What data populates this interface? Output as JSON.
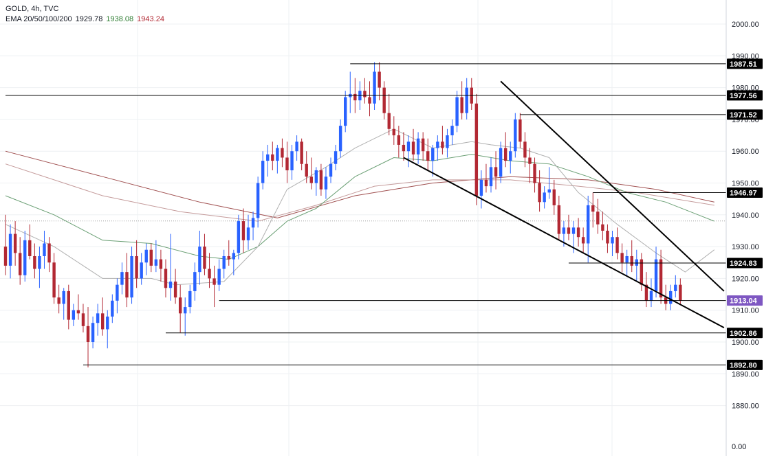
{
  "header": {
    "symbol_line": "GOLD, 4h, TVC",
    "ema_label": "EMA 20/50/100/200",
    "ema_values": [
      "1929.78",
      "1938.08",
      "1943.24"
    ]
  },
  "colors": {
    "up": "#2962ff",
    "down": "#b22833",
    "ema20": "#b0b0b0",
    "ema50": "#6a9f74",
    "ema100": "#c49a9a",
    "ema200": "#a05050",
    "current_tag": "#7e57c2",
    "level_line": "#000000",
    "grid": "#eef0f3",
    "ema_value_1": "#131722",
    "ema_value_2": "#2e7d32",
    "ema_value_3": "#b22833"
  },
  "chart_data": {
    "type": "candlestick",
    "title": "GOLD, 4h, TVC",
    "y_ticks": [
      "1880.00",
      "1890.00",
      "1900.00",
      "1910.00",
      "1920.00",
      "1930.00",
      "1940.00",
      "1950.00",
      "1960.00",
      "1970.00",
      "1980.00",
      "1990.00",
      "2000.00"
    ],
    "bottom_tick": "0.00",
    "ylim": [
      1873,
      2007
    ],
    "current_price": "1913.04",
    "levels": [
      {
        "label": "1987.51",
        "price": 1987.51,
        "from_bar": 71
      },
      {
        "label": "1977.56",
        "price": 1977.56,
        "from_bar": 0
      },
      {
        "label": "1971.52",
        "price": 1971.52,
        "from_bar": 106
      },
      {
        "label": "1946.97",
        "price": 1946.97,
        "from_bar": 121
      },
      {
        "label": "1924.83",
        "price": 1924.83,
        "from_bar": 116
      },
      {
        "label": "1902.86",
        "price": 1902.86,
        "from_bar": 33
      },
      {
        "label": "1892.80",
        "price": 1892.8,
        "from_bar": 16
      }
    ],
    "trendlines": [
      {
        "from": [
          102,
          1982.0
        ],
        "to": [
          148,
          1916.0
        ]
      },
      {
        "from": [
          82,
          1958.0
        ],
        "to": [
          148,
          1904.5
        ]
      }
    ],
    "candles_ohlc": [
      [
        1930,
        1940,
        1921,
        1924
      ],
      [
        1924,
        1937,
        1920,
        1934
      ],
      [
        1934,
        1938,
        1924,
        1928
      ],
      [
        1928,
        1933,
        1918,
        1921
      ],
      [
        1921,
        1935,
        1919,
        1932
      ],
      [
        1932,
        1937,
        1926,
        1927
      ],
      [
        1927,
        1931,
        1920,
        1923
      ],
      [
        1923,
        1930,
        1917,
        1927
      ],
      [
        1927,
        1935,
        1923,
        1931
      ],
      [
        1931,
        1933,
        1922,
        1925
      ],
      [
        1925,
        1928,
        1912,
        1914
      ],
      [
        1914,
        1918,
        1909,
        1912
      ],
      [
        1912,
        1917,
        1907,
        1916
      ],
      [
        1916,
        1918,
        1904,
        1907
      ],
      [
        1907,
        1912,
        1905,
        1910
      ],
      [
        1910,
        1915,
        1907,
        1909
      ],
      [
        1909,
        1912,
        1903,
        1905
      ],
      [
        1905,
        1911,
        1892,
        1900
      ],
      [
        1900,
        1908,
        1898,
        1906
      ],
      [
        1906,
        1912,
        1902,
        1909
      ],
      [
        1909,
        1914,
        1902,
        1904
      ],
      [
        1904,
        1910,
        1898,
        1908
      ],
      [
        1908,
        1915,
        1906,
        1913
      ],
      [
        1913,
        1920,
        1909,
        1918
      ],
      [
        1918,
        1925,
        1915,
        1922
      ],
      [
        1922,
        1928,
        1911,
        1914
      ],
      [
        1914,
        1930,
        1912,
        1927
      ],
      [
        1927,
        1932,
        1917,
        1920
      ],
      [
        1920,
        1928,
        1918,
        1925
      ],
      [
        1925,
        1931,
        1921,
        1929
      ],
      [
        1929,
        1931,
        1922,
        1924
      ],
      [
        1924,
        1932,
        1922,
        1926
      ],
      [
        1926,
        1929,
        1919,
        1923
      ],
      [
        1923,
        1926,
        1914,
        1917
      ],
      [
        1917,
        1934,
        1913,
        1919
      ],
      [
        1919,
        1923,
        1912,
        1914
      ],
      [
        1914,
        1918,
        1903,
        1909
      ],
      [
        1909,
        1914,
        1902,
        1911
      ],
      [
        1911,
        1918,
        1909,
        1916
      ],
      [
        1916,
        1925,
        1913,
        1922
      ],
      [
        1922,
        1935,
        1918,
        1930
      ],
      [
        1930,
        1934,
        1921,
        1923
      ],
      [
        1923,
        1928,
        1917,
        1920
      ],
      [
        1920,
        1924,
        1911,
        1918
      ],
      [
        1918,
        1926,
        1916,
        1923
      ],
      [
        1923,
        1929,
        1920,
        1927
      ],
      [
        1927,
        1932,
        1924,
        1926
      ],
      [
        1926,
        1929,
        1921,
        1928
      ],
      [
        1928,
        1940,
        1926,
        1938
      ],
      [
        1938,
        1942,
        1928,
        1932
      ],
      [
        1932,
        1940,
        1929,
        1936
      ],
      [
        1936,
        1941,
        1932,
        1939
      ],
      [
        1939,
        1952,
        1936,
        1950
      ],
      [
        1950,
        1960,
        1948,
        1957
      ],
      [
        1957,
        1962,
        1952,
        1959
      ],
      [
        1959,
        1963,
        1954,
        1957
      ],
      [
        1957,
        1962,
        1953,
        1961
      ],
      [
        1961,
        1964,
        1955,
        1958
      ],
      [
        1958,
        1963,
        1950,
        1954
      ],
      [
        1954,
        1962,
        1951,
        1960
      ],
      [
        1960,
        1965,
        1957,
        1963
      ],
      [
        1963,
        1964,
        1954,
        1956
      ],
      [
        1956,
        1960,
        1950,
        1952
      ],
      [
        1952,
        1958,
        1948,
        1950
      ],
      [
        1950,
        1955,
        1946,
        1954
      ],
      [
        1954,
        1956,
        1946,
        1948
      ],
      [
        1948,
        1955,
        1945,
        1952
      ],
      [
        1952,
        1958,
        1950,
        1956
      ],
      [
        1956,
        1962,
        1954,
        1960
      ],
      [
        1960,
        1970,
        1958,
        1968
      ],
      [
        1968,
        1979,
        1966,
        1977
      ],
      [
        1977,
        1985,
        1972,
        1978
      ],
      [
        1978,
        1983,
        1972,
        1976
      ],
      [
        1976,
        1982,
        1973,
        1979
      ],
      [
        1979,
        1983,
        1975,
        1977
      ],
      [
        1977,
        1982,
        1971,
        1975
      ],
      [
        1975,
        1988,
        1973,
        1985
      ],
      [
        1985,
        1988,
        1976,
        1980
      ],
      [
        1980,
        1982,
        1970,
        1972
      ],
      [
        1972,
        1978,
        1965,
        1967
      ],
      [
        1967,
        1971,
        1962,
        1965
      ],
      [
        1965,
        1968,
        1958,
        1962
      ],
      [
        1962,
        1966,
        1957,
        1960
      ],
      [
        1960,
        1965,
        1955,
        1963
      ],
      [
        1963,
        1967,
        1957,
        1959
      ],
      [
        1959,
        1966,
        1956,
        1964
      ],
      [
        1964,
        1966,
        1957,
        1960
      ],
      [
        1960,
        1964,
        1954,
        1957
      ],
      [
        1957,
        1962,
        1952,
        1961
      ],
      [
        1961,
        1965,
        1957,
        1963
      ],
      [
        1963,
        1968,
        1959,
        1961
      ],
      [
        1961,
        1967,
        1958,
        1965
      ],
      [
        1965,
        1970,
        1962,
        1968
      ],
      [
        1968,
        1979,
        1966,
        1977
      ],
      [
        1977,
        1982,
        1970,
        1972
      ],
      [
        1972,
        1983,
        1970,
        1980
      ],
      [
        1980,
        1983,
        1973,
        1975
      ],
      [
        1975,
        1978,
        1943,
        1946
      ],
      [
        1946,
        1954,
        1942,
        1951
      ],
      [
        1951,
        1956,
        1947,
        1949
      ],
      [
        1949,
        1958,
        1947,
        1955
      ],
      [
        1955,
        1960,
        1948,
        1952
      ],
      [
        1952,
        1963,
        1950,
        1961
      ],
      [
        1961,
        1966,
        1955,
        1957
      ],
      [
        1957,
        1963,
        1953,
        1960
      ],
      [
        1960,
        1972,
        1958,
        1970
      ],
      [
        1970,
        1972,
        1961,
        1963
      ],
      [
        1963,
        1966,
        1955,
        1958
      ],
      [
        1958,
        1961,
        1950,
        1956
      ],
      [
        1956,
        1958,
        1947,
        1950
      ],
      [
        1950,
        1954,
        1941,
        1944
      ],
      [
        1944,
        1949,
        1942,
        1947
      ],
      [
        1947,
        1955,
        1945,
        1948
      ],
      [
        1948,
        1951,
        1940,
        1943
      ],
      [
        1943,
        1946,
        1932,
        1934
      ],
      [
        1934,
        1938,
        1930,
        1936
      ],
      [
        1936,
        1940,
        1932,
        1934
      ],
      [
        1934,
        1938,
        1928,
        1936
      ],
      [
        1936,
        1939,
        1930,
        1933
      ],
      [
        1933,
        1936,
        1928,
        1931
      ],
      [
        1931,
        1946,
        1925,
        1943
      ],
      [
        1943,
        1947,
        1936,
        1941
      ],
      [
        1941,
        1945,
        1934,
        1937
      ],
      [
        1937,
        1941,
        1932,
        1935
      ],
      [
        1935,
        1937,
        1928,
        1931
      ],
      [
        1931,
        1935,
        1927,
        1933
      ],
      [
        1933,
        1936,
        1926,
        1928
      ],
      [
        1928,
        1931,
        1922,
        1925
      ],
      [
        1925,
        1929,
        1921,
        1927
      ],
      [
        1927,
        1932,
        1922,
        1924
      ],
      [
        1924,
        1929,
        1919,
        1926
      ],
      [
        1926,
        1928,
        1916,
        1918
      ],
      [
        1918,
        1922,
        1911,
        1913
      ],
      [
        1913,
        1920,
        1911,
        1916
      ],
      [
        1916,
        1930,
        1914,
        1926
      ],
      [
        1926,
        1929,
        1912,
        1914
      ],
      [
        1914,
        1918,
        1910,
        1912
      ],
      [
        1912,
        1918,
        1910,
        1916
      ],
      [
        1916,
        1921,
        1914,
        1918
      ],
      [
        1918,
        1920,
        1912,
        1913
      ]
    ],
    "ema20": [
      [
        0,
        1937
      ],
      [
        10,
        1930
      ],
      [
        20,
        1920
      ],
      [
        30,
        1920
      ],
      [
        35,
        1918
      ],
      [
        45,
        1919
      ],
      [
        52,
        1930
      ],
      [
        58,
        1948
      ],
      [
        66,
        1955
      ],
      [
        72,
        1961
      ],
      [
        80,
        1967
      ],
      [
        88,
        1961
      ],
      [
        96,
        1963
      ],
      [
        100,
        1962
      ],
      [
        106,
        1961
      ],
      [
        112,
        1958
      ],
      [
        118,
        1947
      ],
      [
        126,
        1937
      ],
      [
        134,
        1928
      ],
      [
        140,
        1922
      ],
      [
        146,
        1929
      ]
    ],
    "ema50": [
      [
        0,
        1946
      ],
      [
        10,
        1940
      ],
      [
        20,
        1932
      ],
      [
        30,
        1931
      ],
      [
        40,
        1927
      ],
      [
        46,
        1926
      ],
      [
        52,
        1930
      ],
      [
        58,
        1938
      ],
      [
        64,
        1942
      ],
      [
        72,
        1952
      ],
      [
        80,
        1958
      ],
      [
        88,
        1957
      ],
      [
        96,
        1959
      ],
      [
        104,
        1957
      ],
      [
        112,
        1956
      ],
      [
        120,
        1952
      ],
      [
        128,
        1947
      ],
      [
        136,
        1944
      ],
      [
        146,
        1938
      ]
    ],
    "ema100": [
      [
        0,
        1956
      ],
      [
        20,
        1946
      ],
      [
        36,
        1941
      ],
      [
        52,
        1938
      ],
      [
        64,
        1943
      ],
      [
        76,
        1949
      ],
      [
        88,
        1951
      ],
      [
        104,
        1951
      ],
      [
        118,
        1949
      ],
      [
        130,
        1947
      ],
      [
        146,
        1943
      ]
    ],
    "ema200": [
      [
        0,
        1960
      ],
      [
        20,
        1952
      ],
      [
        40,
        1944
      ],
      [
        56,
        1939
      ],
      [
        72,
        1946
      ],
      [
        88,
        1950
      ],
      [
        104,
        1952
      ],
      [
        120,
        1951
      ],
      [
        134,
        1948
      ],
      [
        146,
        1944
      ]
    ]
  }
}
